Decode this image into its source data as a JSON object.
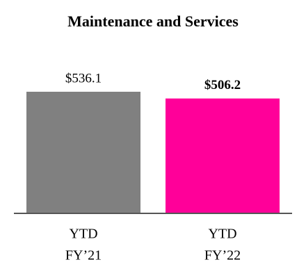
{
  "chart_data": {
    "type": "bar",
    "title": "Maintenance and Services",
    "categories": [
      [
        "YTD",
        "FY’21"
      ],
      [
        "YTD",
        "FY’22"
      ]
    ],
    "values": [
      536.1,
      506.2
    ],
    "value_labels": [
      "$536.1",
      "$506.2"
    ],
    "colors": [
      "#808080",
      "#ff0099"
    ]
  }
}
